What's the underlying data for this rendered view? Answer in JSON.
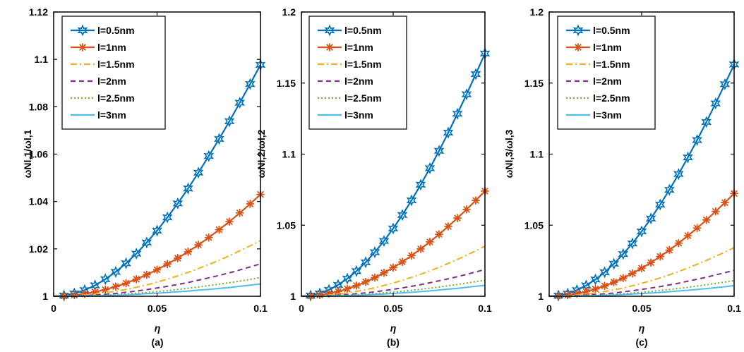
{
  "colors": {
    "series": [
      "#0072BD",
      "#D95319",
      "#EDB120",
      "#7E2F8E",
      "#77AC30",
      "#4DBEEE"
    ]
  },
  "chart_data": [
    {
      "type": "line",
      "caption": "(a)",
      "xlabel": "η",
      "ylabel": "ωNl,1/ωl,1",
      "xlim": [
        0,
        0.1
      ],
      "ylim": [
        1,
        1.12
      ],
      "xticks": [
        "0",
        "0.05",
        "0.1"
      ],
      "yticks": [
        "1",
        "1.02",
        "1.04",
        "1.06",
        "1.08",
        "1.1",
        "1.12"
      ],
      "legend_position": "top-left",
      "grid": false,
      "x": [
        0.005,
        0.01,
        0.015,
        0.02,
        0.025,
        0.03,
        0.035,
        0.04,
        0.045,
        0.05,
        0.055,
        0.06,
        0.065,
        0.07,
        0.075,
        0.08,
        0.085,
        0.09,
        0.095,
        0.1
      ],
      "series": [
        {
          "name": "l=0.5nm",
          "style": "solid-star",
          "values": [
            1.0003,
            1.0012,
            1.0026,
            1.0046,
            1.0072,
            1.0103,
            1.0139,
            1.018,
            1.0227,
            1.0277,
            1.0333,
            1.0392,
            1.0455,
            1.0522,
            1.0592,
            1.0664,
            1.0739,
            1.0817,
            1.0896,
            1.0977
          ]
        },
        {
          "name": "l=1nm",
          "style": "solid-asterisk",
          "values": [
            1.0001,
            1.0005,
            1.001,
            1.0018,
            1.0028,
            1.0041,
            1.0055,
            1.0072,
            1.0091,
            1.0112,
            1.0136,
            1.0161,
            1.0188,
            1.0217,
            1.0248,
            1.0281,
            1.0315,
            1.0352,
            1.039,
            1.043
          ]
        },
        {
          "name": "l=1.5nm",
          "style": "dashdot",
          "values": [
            1.0001,
            1.0002,
            1.0005,
            1.0009,
            1.0015,
            1.0021,
            1.0029,
            1.0038,
            1.0048,
            1.006,
            1.0072,
            1.0086,
            1.0101,
            1.0117,
            1.0134,
            1.0152,
            1.0171,
            1.0192,
            1.0213,
            1.0235
          ]
        },
        {
          "name": "l=2nm",
          "style": "dashed",
          "values": [
            1.0,
            1.0001,
            1.0003,
            1.0005,
            1.0008,
            1.0012,
            1.0017,
            1.0022,
            1.0028,
            1.0035,
            1.0042,
            1.005,
            1.0058,
            1.0068,
            1.0078,
            1.0088,
            1.0099,
            1.0111,
            1.0124,
            1.0137
          ]
        },
        {
          "name": "l=2.5nm",
          "style": "dotted",
          "values": [
            1.0,
            1.0001,
            1.0002,
            1.0003,
            1.0005,
            1.0007,
            1.001,
            1.0013,
            1.0016,
            1.002,
            1.0024,
            1.0029,
            1.0034,
            1.0039,
            1.0045,
            1.0051,
            1.0057,
            1.0064,
            1.0071,
            1.0079
          ]
        },
        {
          "name": "l=3nm",
          "style": "solid",
          "values": [
            1.0,
            1.0001,
            1.0001,
            1.0002,
            1.0003,
            1.0005,
            1.0006,
            1.0008,
            1.0011,
            1.0013,
            1.0016,
            1.0019,
            1.0022,
            1.0026,
            1.0029,
            1.0033,
            1.0037,
            1.0042,
            1.0047,
            1.0052
          ]
        }
      ]
    },
    {
      "type": "line",
      "caption": "(b)",
      "xlabel": "η",
      "ylabel": "ωNl,2/ωl,2",
      "xlim": [
        0,
        0.1
      ],
      "ylim": [
        1,
        1.2
      ],
      "xticks": [
        "0",
        "0.05",
        "0.1"
      ],
      "yticks": [
        "1",
        "1.05",
        "1.1",
        "1.15",
        "1.2"
      ],
      "legend_position": "top-left",
      "grid": false,
      "x": [
        0.005,
        0.01,
        0.015,
        0.02,
        0.025,
        0.03,
        0.035,
        0.04,
        0.045,
        0.05,
        0.055,
        0.06,
        0.065,
        0.07,
        0.075,
        0.08,
        0.085,
        0.09,
        0.095,
        0.1
      ],
      "series": [
        {
          "name": "l=0.5nm",
          "style": "solid-star",
          "values": [
            1.0005,
            1.002,
            1.0045,
            1.008,
            1.0124,
            1.0177,
            1.0239,
            1.031,
            1.0389,
            1.0477,
            1.0572,
            1.0675,
            1.0785,
            1.0901,
            1.1023,
            1.1151,
            1.1284,
            1.1421,
            1.1563,
            1.1708
          ]
        },
        {
          "name": "l=1nm",
          "style": "solid-asterisk",
          "values": [
            1.0002,
            1.0009,
            1.0019,
            1.0034,
            1.0052,
            1.0075,
            1.0101,
            1.0131,
            1.0165,
            1.0202,
            1.0242,
            1.0286,
            1.0333,
            1.0383,
            1.0436,
            1.0492,
            1.055,
            1.0611,
            1.0674,
            1.074
          ]
        },
        {
          "name": "l=1.5nm",
          "style": "dashdot",
          "values": [
            1.0001,
            1.0004,
            1.0009,
            1.0015,
            1.0024,
            1.0034,
            1.0046,
            1.006,
            1.0076,
            1.0093,
            1.0112,
            1.0133,
            1.0155,
            1.0179,
            1.0204,
            1.0231,
            1.0259,
            1.0289,
            1.032,
            1.0352
          ]
        },
        {
          "name": "l=2nm",
          "style": "dashed",
          "values": [
            1.0,
            1.0002,
            1.0004,
            1.0008,
            1.0012,
            1.0018,
            1.0024,
            1.0031,
            1.004,
            1.0049,
            1.0059,
            1.007,
            1.0082,
            1.0095,
            1.0109,
            1.0123,
            1.0138,
            1.0154,
            1.0171,
            1.0189
          ]
        },
        {
          "name": "l=2.5nm",
          "style": "dotted",
          "values": [
            1.0,
            1.0001,
            1.0003,
            1.0005,
            1.0007,
            1.0011,
            1.0014,
            1.0019,
            1.0024,
            1.0029,
            1.0035,
            1.0042,
            1.0049,
            1.0057,
            1.0065,
            1.0074,
            1.0083,
            1.0093,
            1.0103,
            1.0113
          ]
        },
        {
          "name": "l=3nm",
          "style": "solid",
          "values": [
            1.0,
            1.0001,
            1.0002,
            1.0003,
            1.0005,
            1.0007,
            1.001,
            1.0013,
            1.0016,
            1.002,
            1.0024,
            1.0028,
            1.0033,
            1.0038,
            1.0044,
            1.005,
            1.0056,
            1.0063,
            1.007,
            1.0077
          ]
        }
      ]
    },
    {
      "type": "line",
      "caption": "(c)",
      "xlabel": "η",
      "ylabel": "ωNl,3/ωl,3",
      "xlim": [
        0,
        0.1
      ],
      "ylim": [
        1,
        1.2
      ],
      "xticks": [
        "0",
        "0.05",
        "0.1"
      ],
      "yticks": [
        "1",
        "1.05",
        "1.1",
        "1.15",
        "1.2"
      ],
      "legend_position": "top-left",
      "grid": false,
      "x": [
        0.005,
        0.01,
        0.015,
        0.02,
        0.025,
        0.03,
        0.035,
        0.04,
        0.045,
        0.05,
        0.055,
        0.06,
        0.065,
        0.07,
        0.075,
        0.08,
        0.085,
        0.09,
        0.095,
        0.1
      ],
      "series": [
        {
          "name": "l=0.5nm",
          "style": "solid-star",
          "values": [
            1.0005,
            1.0019,
            1.0043,
            1.0076,
            1.0118,
            1.0169,
            1.0229,
            1.0297,
            1.0372,
            1.0456,
            1.0547,
            1.0645,
            1.0749,
            1.086,
            1.0977,
            1.1099,
            1.1226,
            1.1357,
            1.1492,
            1.1631
          ]
        },
        {
          "name": "l=1nm",
          "style": "solid-asterisk",
          "values": [
            1.0002,
            1.0008,
            1.0019,
            1.0033,
            1.0051,
            1.0073,
            1.0099,
            1.0128,
            1.0161,
            1.0197,
            1.0237,
            1.028,
            1.0325,
            1.0374,
            1.0426,
            1.048,
            1.0537,
            1.0597,
            1.0659,
            1.0723
          ]
        },
        {
          "name": "l=1.5nm",
          "style": "dashdot",
          "values": [
            1.0001,
            1.0004,
            1.0008,
            1.0015,
            1.0023,
            1.0033,
            1.0045,
            1.0058,
            1.0074,
            1.0091,
            1.0109,
            1.0129,
            1.0151,
            1.0174,
            1.0199,
            1.0225,
            1.0252,
            1.0281,
            1.0311,
            1.0342
          ]
        },
        {
          "name": "l=2nm",
          "style": "dashed",
          "values": [
            1.0,
            1.0002,
            1.0004,
            1.0008,
            1.0012,
            1.0017,
            1.0023,
            1.0031,
            1.0039,
            1.0048,
            1.0058,
            1.0068,
            1.008,
            1.0092,
            1.0106,
            1.012,
            1.0134,
            1.015,
            1.0166,
            1.0183
          ]
        },
        {
          "name": "l=2.5nm",
          "style": "dotted",
          "values": [
            1.0,
            1.0001,
            1.0002,
            1.0004,
            1.0007,
            1.001,
            1.0014,
            1.0018,
            1.0023,
            1.0028,
            1.0034,
            1.0041,
            1.0048,
            1.0055,
            1.0063,
            1.0072,
            1.0081,
            1.009,
            1.01,
            1.011
          ]
        },
        {
          "name": "l=3nm",
          "style": "solid",
          "values": [
            1.0,
            1.0001,
            1.0002,
            1.0003,
            1.0005,
            1.0007,
            1.0009,
            1.0012,
            1.0016,
            1.0019,
            1.0023,
            1.0027,
            1.0032,
            1.0037,
            1.0042,
            1.0048,
            1.0054,
            1.0061,
            1.0067,
            1.0075
          ]
        }
      ]
    }
  ]
}
